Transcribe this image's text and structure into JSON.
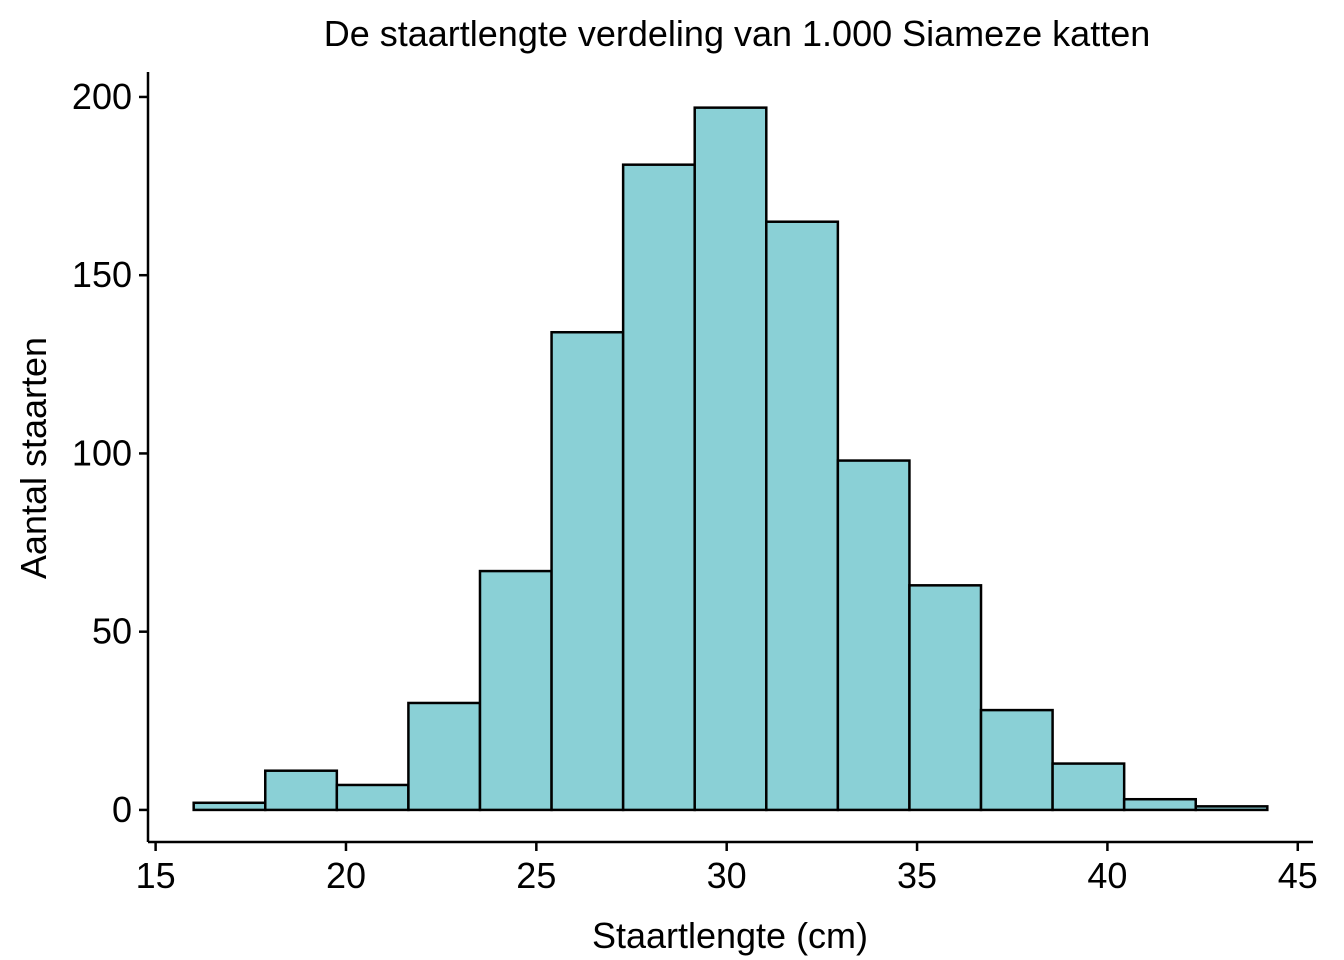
{
  "chart_data": {
    "type": "bar",
    "title": "De staartlengte verdeling van 1.000 Siameze katten",
    "xlabel": "Staartlengte (cm)",
    "ylabel": "Aantal staarten",
    "bar_color": "#8ad0d6",
    "edge_color": "#000000",
    "xlim": [
      14.8,
      45.4
    ],
    "ylim": [
      -9,
      207
    ],
    "x_ticks": [
      15,
      20,
      25,
      30,
      35,
      40,
      45
    ],
    "y_ticks": [
      0,
      50,
      100,
      150,
      200
    ],
    "x_tick_labels": [
      "15",
      "20",
      "25",
      "30",
      "35",
      "40",
      "45"
    ],
    "y_tick_labels": [
      "0",
      "50",
      "100",
      "150",
      "200"
    ],
    "bins": [
      {
        "x0": 16.0,
        "x1": 17.88,
        "count": 2
      },
      {
        "x0": 17.88,
        "x1": 19.76,
        "count": 11
      },
      {
        "x0": 19.76,
        "x1": 21.64,
        "count": 7
      },
      {
        "x0": 21.64,
        "x1": 23.52,
        "count": 30
      },
      {
        "x0": 23.52,
        "x1": 25.4,
        "count": 67
      },
      {
        "x0": 25.4,
        "x1": 27.28,
        "count": 134
      },
      {
        "x0": 27.28,
        "x1": 29.16,
        "count": 181
      },
      {
        "x0": 29.16,
        "x1": 31.04,
        "count": 197
      },
      {
        "x0": 31.04,
        "x1": 32.92,
        "count": 165
      },
      {
        "x0": 32.92,
        "x1": 34.8,
        "count": 98
      },
      {
        "x0": 34.8,
        "x1": 36.68,
        "count": 63
      },
      {
        "x0": 36.68,
        "x1": 38.56,
        "count": 28
      },
      {
        "x0": 38.56,
        "x1": 40.44,
        "count": 13
      },
      {
        "x0": 40.44,
        "x1": 42.32,
        "count": 3
      },
      {
        "x0": 42.32,
        "x1": 44.2,
        "count": 1
      }
    ],
    "grid": false,
    "legend": "none"
  }
}
